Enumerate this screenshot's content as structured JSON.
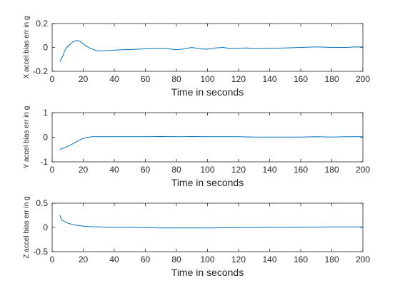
{
  "chart_data": [
    {
      "type": "line",
      "xlabel": "Time in seconds",
      "ylabel": "X accel bias err in g",
      "xlim": [
        0,
        200
      ],
      "ylim": [
        -0.2,
        0.2
      ],
      "xticks": [
        0,
        20,
        40,
        60,
        80,
        100,
        120,
        140,
        160,
        180,
        200
      ],
      "xtick_labels": [
        "0",
        "20",
        "40",
        "60",
        "80",
        "100",
        "120",
        "140",
        "160",
        "180",
        "200"
      ],
      "yticks": [
        -0.2,
        0,
        0.2
      ],
      "ytick_labels": [
        "-0.2",
        "0",
        "0.2"
      ],
      "grid": false,
      "line_color": "#0072BD",
      "series": [
        {
          "x": [
            5,
            6,
            7,
            8,
            9,
            10,
            11,
            12,
            13,
            14,
            15,
            16,
            17,
            18,
            19,
            20,
            22,
            24,
            26,
            28,
            30,
            32,
            34,
            36,
            38,
            40,
            45,
            50,
            55,
            60,
            65,
            70,
            75,
            80,
            85,
            90,
            95,
            100,
            105,
            110,
            115,
            120,
            125,
            130,
            140,
            150,
            160,
            170,
            180,
            190,
            195,
            200
          ],
          "y": [
            -0.12,
            -0.09,
            -0.07,
            -0.03,
            -0.01,
            0.01,
            0.02,
            0.03,
            0.045,
            0.05,
            0.055,
            0.058,
            0.055,
            0.05,
            0.04,
            0.03,
            0.01,
            -0.005,
            -0.015,
            -0.025,
            -0.03,
            -0.03,
            -0.028,
            -0.025,
            -0.025,
            -0.022,
            -0.02,
            -0.018,
            -0.015,
            -0.012,
            -0.01,
            -0.008,
            -0.012,
            -0.02,
            -0.012,
            0.0,
            -0.012,
            -0.015,
            -0.005,
            0.0,
            -0.01,
            -0.008,
            -0.005,
            -0.01,
            -0.008,
            -0.005,
            0.0,
            0.005,
            0.0,
            0.0,
            0.005,
            0.003
          ]
        }
      ]
    },
    {
      "type": "line",
      "xlabel": "Time in seconds",
      "ylabel": "Y accel bias err in g",
      "xlim": [
        0,
        200
      ],
      "ylim": [
        -1,
        1
      ],
      "xticks": [
        0,
        20,
        40,
        60,
        80,
        100,
        120,
        140,
        160,
        180,
        200
      ],
      "xtick_labels": [
        "0",
        "20",
        "40",
        "60",
        "80",
        "100",
        "120",
        "140",
        "160",
        "180",
        "200"
      ],
      "yticks": [
        -1,
        0,
        1
      ],
      "ytick_labels": [
        "-1",
        "0",
        "1"
      ],
      "grid": false,
      "line_color": "#0072BD",
      "series": [
        {
          "x": [
            5,
            6,
            8,
            10,
            12,
            14,
            16,
            18,
            20,
            22,
            24,
            26,
            28,
            30,
            35,
            40,
            50,
            60,
            70,
            80,
            90,
            100,
            110,
            120,
            130,
            140,
            150,
            160,
            170,
            180,
            190,
            200
          ],
          "y": [
            -0.5,
            -0.47,
            -0.42,
            -0.37,
            -0.31,
            -0.24,
            -0.17,
            -0.1,
            -0.05,
            -0.01,
            0.01,
            0.02,
            0.02,
            0.02,
            0.02,
            0.02,
            0.02,
            0.02,
            0.03,
            0.02,
            0.03,
            0.02,
            0.02,
            0.02,
            0.01,
            0.01,
            0.01,
            0.01,
            0.02,
            0.01,
            0.02,
            0.02
          ]
        }
      ]
    },
    {
      "type": "line",
      "xlabel": "Time in seconds",
      "ylabel": "Z accel bias err in g",
      "xlim": [
        0,
        200
      ],
      "ylim": [
        -0.5,
        0.5
      ],
      "xticks": [
        0,
        20,
        40,
        60,
        80,
        100,
        120,
        140,
        160,
        180,
        200
      ],
      "xtick_labels": [
        "0",
        "20",
        "40",
        "60",
        "80",
        "100",
        "120",
        "140",
        "160",
        "180",
        "200"
      ],
      "yticks": [
        -0.5,
        0,
        0.5
      ],
      "ytick_labels": [
        "-0.5",
        "0",
        "0.5"
      ],
      "grid": false,
      "line_color": "#0072BD",
      "series": [
        {
          "x": [
            5,
            5.5,
            6,
            7,
            8,
            10,
            12,
            14,
            16,
            18,
            20,
            25,
            30,
            35,
            40,
            50,
            60,
            70,
            80,
            90,
            100,
            120,
            140,
            160,
            180,
            200
          ],
          "y": [
            0.25,
            0.2,
            0.16,
            0.14,
            0.12,
            0.09,
            0.07,
            0.055,
            0.045,
            0.035,
            0.025,
            0.015,
            0.01,
            0.005,
            0.0,
            0.0,
            -0.005,
            -0.01,
            -0.01,
            -0.01,
            -0.01,
            -0.005,
            0.0,
            0.005,
            0.01,
            0.01
          ]
        }
      ]
    }
  ]
}
